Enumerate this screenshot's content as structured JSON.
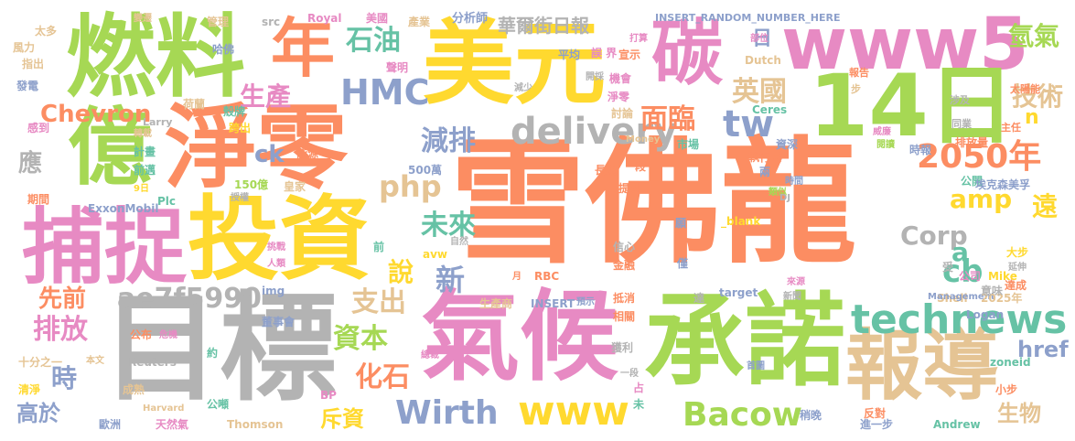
{
  "palette": {
    "orange": "#fc8d62",
    "yellow": "#ffd92f",
    "green": "#a6d854",
    "pink": "#e78ac3",
    "teal": "#66c2a5",
    "blue": "#8da0cb",
    "tan": "#e5c494",
    "gray": "#b3b3b3"
  },
  "words": [
    {
      "text": "雪佛龍",
      "color": "#fc8d62"
    },
    {
      "text": "目標",
      "color": "#b3b3b3"
    },
    {
      "text": "承諾",
      "color": "#a6d854"
    },
    {
      "text": "氣候",
      "color": "#e78ac3"
    },
    {
      "text": "投資",
      "color": "#ffd92f"
    },
    {
      "text": "淨零",
      "color": "#fc8d62"
    },
    {
      "text": "燃料",
      "color": "#a6d854"
    },
    {
      "text": "美元",
      "color": "#ffd92f"
    },
    {
      "text": "www5",
      "color": "#e78ac3"
    },
    {
      "text": "14日",
      "color": "#a6d854"
    },
    {
      "text": "報導",
      "color": "#e5c494"
    },
    {
      "text": "捕捉",
      "color": "#e78ac3"
    },
    {
      "text": "億",
      "color": "#a6d854"
    },
    {
      "text": "碳",
      "color": "#e78ac3"
    },
    {
      "text": "年",
      "color": "#fc8d62"
    },
    {
      "text": "technews",
      "color": "#66c2a5"
    },
    {
      "text": "delivery",
      "color": "#b3b3b3"
    },
    {
      "text": "HMC",
      "color": "#8da0cb"
    },
    {
      "text": "tw",
      "color": "#8da0cb"
    },
    {
      "text": "www",
      "color": "#ffd92f"
    },
    {
      "text": "Bacow",
      "color": "#a6d854"
    },
    {
      "text": "Wirth",
      "color": "#8da0cb"
    },
    {
      "text": "ae7f5990",
      "color": "#b3b3b3"
    },
    {
      "text": "2050年",
      "color": "#fc8d62"
    },
    {
      "text": "cb",
      "color": "#66c2a5"
    },
    {
      "text": "石油",
      "color": "#66c2a5"
    },
    {
      "text": "英國",
      "color": "#e5c494"
    },
    {
      "text": "技術",
      "color": "#e5c494"
    },
    {
      "text": "氫氣",
      "color": "#a6d854"
    },
    {
      "text": "減排",
      "color": "#8da0cb"
    },
    {
      "text": "生產",
      "color": "#e78ac3"
    },
    {
      "text": "面臨",
      "color": "#fc8d62"
    },
    {
      "text": "支出",
      "color": "#e5c494"
    },
    {
      "text": "化石",
      "color": "#fc8d62"
    },
    {
      "text": "資本",
      "color": "#a6d854"
    },
    {
      "text": "未來",
      "color": "#66c2a5"
    },
    {
      "text": "php",
      "color": "#e5c494"
    },
    {
      "text": "amp",
      "color": "#ffd92f"
    },
    {
      "text": "Chevron",
      "color": "#fc8d62"
    },
    {
      "text": "排放",
      "color": "#e78ac3"
    },
    {
      "text": "先前",
      "color": "#fc8d62"
    },
    {
      "text": "時",
      "color": "#8da0cb"
    },
    {
      "text": "高於",
      "color": "#8da0cb"
    },
    {
      "text": "說",
      "color": "#ffd92f"
    },
    {
      "text": "新",
      "color": "#8da0cb"
    },
    {
      "text": "斥資",
      "color": "#ffd92f"
    },
    {
      "text": "Corp",
      "color": "#b3b3b3"
    },
    {
      "text": "a",
      "color": "#66c2a5"
    },
    {
      "text": "href",
      "color": "#8da0cb"
    },
    {
      "text": "生物",
      "color": "#e5c494"
    },
    {
      "text": "遠",
      "color": "#ffd92f"
    },
    {
      "text": "應",
      "color": "#b3b3b3"
    },
    {
      "text": "ck",
      "color": "#8da0cb"
    },
    {
      "text": "華爾街日報",
      "color": "#b3b3b3"
    },
    {
      "text": "日",
      "color": "#8da0cb"
    },
    {
      "text": "n",
      "color": "#ffd92f"
    },
    {
      "text": "INSERT_RANDOM_NUMBER_HERE",
      "color": "#8da0cb"
    },
    {
      "text": "分析師",
      "color": "#8da0cb"
    },
    {
      "text": "Royal",
      "color": "#e78ac3"
    },
    {
      "text": "美國",
      "color": "#e78ac3"
    },
    {
      "text": "產業",
      "color": "#e5c494"
    },
    {
      "text": "管理",
      "color": "#e5c494"
    },
    {
      "text": "src",
      "color": "#b3b3b3"
    },
    {
      "text": "哈佛",
      "color": "#8da0cb"
    },
    {
      "text": "聲明",
      "color": "#e78ac3"
    },
    {
      "text": "平均",
      "color": "#8da0cb"
    },
    {
      "text": "誤 界",
      "color": "#e78ac3"
    },
    {
      "text": "宣示",
      "color": "#fc8d62"
    },
    {
      "text": "打算",
      "color": "#e78ac3"
    },
    {
      "text": "機會",
      "color": "#e78ac3"
    },
    {
      "text": "淨零",
      "color": "#e78ac3"
    },
    {
      "text": "討論",
      "color": "#e5c494"
    },
    {
      "text": "開採",
      "color": "#b3b3b3"
    },
    {
      "text": "減少",
      "color": "#b3b3b3"
    },
    {
      "text": "Dutch",
      "color": "#e5c494"
    },
    {
      "text": "Ceres",
      "color": "#66c2a5"
    },
    {
      "text": "市場",
      "color": "#66c2a5"
    },
    {
      "text": "Money",
      "color": "#e5c494"
    },
    {
      "text": "執行長",
      "color": "#fc8d62"
    },
    {
      "text": "資深",
      "color": "#8da0cb"
    },
    {
      "text": "Larry",
      "color": "#b3b3b3"
    },
    {
      "text": "荷蘭",
      "color": "#e5c494"
    },
    {
      "text": "殼牌",
      "color": "#66c2a5"
    },
    {
      "text": "跨出",
      "color": "#ffd92f"
    },
    {
      "text": "能源",
      "color": "#fc8d62"
    },
    {
      "text": "皇家",
      "color": "#e5c494"
    },
    {
      "text": "500萬",
      "color": "#8da0cb"
    },
    {
      "text": "150億",
      "color": "#a6d854"
    },
    {
      "text": "長期",
      "color": "#fc8d62"
    },
    {
      "text": "段",
      "color": "#fc8d62"
    },
    {
      "text": "提到",
      "color": "#fc8d62"
    },
    {
      "text": "時報",
      "color": "#8da0cb"
    },
    {
      "text": "兩",
      "color": "#8da0cb"
    },
    {
      "text": "時間",
      "color": "#8da0cb"
    },
    {
      "text": "公開",
      "color": "#66c2a5"
    },
    {
      "text": "埃克森美孚",
      "color": "#8da0cb"
    },
    {
      "text": "部位",
      "color": "#e78ac3"
    },
    {
      "text": "報告",
      "color": "#fc8d62"
    },
    {
      "text": "步",
      "color": "#e5c494"
    },
    {
      "text": "太陽能",
      "color": "#fc8d62"
    },
    {
      "text": "涉及",
      "color": "#b3b3b3"
    },
    {
      "text": "同業",
      "color": "#b3b3b3"
    },
    {
      "text": "主任",
      "color": "#fc8d62"
    },
    {
      "text": "排放量",
      "color": "#fc8d62"
    },
    {
      "text": "閱讀",
      "color": "#a6d854"
    },
    {
      "text": "威廉",
      "color": "#e78ac3"
    },
    {
      "text": "變遷",
      "color": "#e5c494"
    },
    {
      "text": "太多",
      "color": "#e5c494"
    },
    {
      "text": "風力",
      "color": "#e5c494"
    },
    {
      "text": "指出",
      "color": "#e5c494"
    },
    {
      "text": "發電",
      "color": "#8da0cb"
    },
    {
      "text": "感到",
      "color": "#e78ac3"
    },
    {
      "text": "轉載",
      "color": "#e5c494"
    },
    {
      "text": "計畫",
      "color": "#66c2a5"
    },
    {
      "text": "前邁",
      "color": "#66c2a5"
    },
    {
      "text": "期間",
      "color": "#fc8d62"
    },
    {
      "text": "9日",
      "color": "#ffd92f"
    },
    {
      "text": "Plc",
      "color": "#66c2a5"
    },
    {
      "text": "ExxonMobil",
      "color": "#8da0cb"
    },
    {
      "text": "授權",
      "color": "#b3b3b3"
    },
    {
      "text": "十分之一",
      "color": "#e5c494"
    },
    {
      "text": "本文",
      "color": "#e5c494"
    },
    {
      "text": "危機",
      "color": "#e78ac3"
    },
    {
      "text": "公布",
      "color": "#fc8d62"
    },
    {
      "text": "清淨",
      "color": "#ffd92f"
    },
    {
      "text": "歐洲",
      "color": "#8da0cb"
    },
    {
      "text": "天然氣",
      "color": "#e78ac3"
    },
    {
      "text": "Thomson",
      "color": "#e5c494"
    },
    {
      "text": "Harvard",
      "color": "#e5c494"
    },
    {
      "text": "公噸",
      "color": "#66c2a5"
    },
    {
      "text": "成熟",
      "color": "#e5c494"
    },
    {
      "text": "Reuters",
      "color": "#b3b3b3"
    },
    {
      "text": "約",
      "color": "#66c2a5"
    },
    {
      "text": "董事會",
      "color": "#8da0cb"
    },
    {
      "text": "img",
      "color": "#8da0cb"
    },
    {
      "text": "人類",
      "color": "#e78ac3"
    },
    {
      "text": "挑戰",
      "color": "#e78ac3"
    },
    {
      "text": "前",
      "color": "#66c2a5"
    },
    {
      "text": "avw",
      "color": "#ffd92f"
    },
    {
      "text": "自然",
      "color": "#b3b3b3"
    },
    {
      "text": "月",
      "color": "#fc8d62"
    },
    {
      "text": "RBC",
      "color": "#fc8d62"
    },
    {
      "text": "生產商",
      "color": "#e5c494"
    },
    {
      "text": "INSERT",
      "color": "#8da0cb"
    },
    {
      "text": "預示",
      "color": "#8da0cb"
    },
    {
      "text": "抵消",
      "color": "#fc8d62"
    },
    {
      "text": "相關",
      "color": "#fc8d62"
    },
    {
      "text": "獲利",
      "color": "#b3b3b3"
    },
    {
      "text": "總裁",
      "color": "#e78ac3"
    },
    {
      "text": "一段",
      "color": "#b3b3b3"
    },
    {
      "text": "占",
      "color": "#e78ac3"
    },
    {
      "text": "未",
      "color": "#66c2a5"
    },
    {
      "text": "BP",
      "color": "#e78ac3"
    },
    {
      "text": "信心",
      "color": "#b3b3b3"
    },
    {
      "text": "金融",
      "color": "#fc8d62"
    },
    {
      "text": "願",
      "color": "#8da0cb"
    },
    {
      "text": "_blank",
      "color": "#ffd92f"
    },
    {
      "text": "類似",
      "color": "#a6d854"
    },
    {
      "text": "僅",
      "color": "#8da0cb"
    },
    {
      "text": "達",
      "color": "#b3b3b3"
    },
    {
      "text": "target",
      "color": "#8da0cb"
    },
    {
      "text": "來源",
      "color": "#e78ac3"
    },
    {
      "text": "新聞",
      "color": "#b3b3b3"
    },
    {
      "text": "DJ",
      "color": "#b3b3b3"
    },
    {
      "text": "Shell",
      "color": "#e5c494"
    },
    {
      "text": "Logan",
      "color": "#8da0cb"
    },
    {
      "text": "Management",
      "color": "#8da0cb"
    },
    {
      "text": "2025年",
      "color": "#e5c494"
    },
    {
      "text": "公司",
      "color": "#e78ac3"
    },
    {
      "text": "大步",
      "color": "#ffd92f"
    },
    {
      "text": "受",
      "color": "#b3b3b3"
    },
    {
      "text": "Mike",
      "color": "#ffd92f"
    },
    {
      "text": "延伸",
      "color": "#b3b3b3"
    },
    {
      "text": "達成",
      "color": "#fc8d62"
    },
    {
      "text": "意味",
      "color": "#b3b3b3"
    },
    {
      "text": "zoneid",
      "color": "#66c2a5"
    },
    {
      "text": "首圖",
      "color": "#8da0cb"
    },
    {
      "text": "稍晚",
      "color": "#8da0cb"
    },
    {
      "text": "反對",
      "color": "#fc8d62"
    },
    {
      "text": "進一步",
      "color": "#8da0cb"
    },
    {
      "text": "Andrew",
      "color": "#66c2a5"
    },
    {
      "text": "小步",
      "color": "#fc8d62"
    }
  ]
}
